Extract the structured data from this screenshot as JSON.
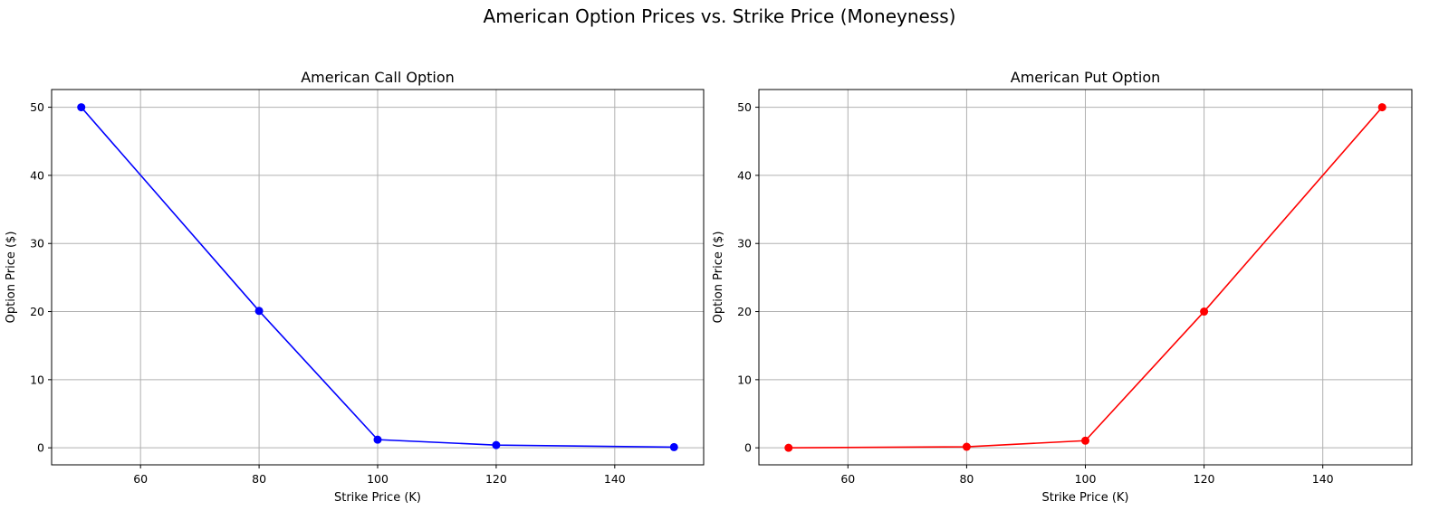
{
  "figure": {
    "suptitle": "American Option Prices vs. Strike Price (Moneyness)"
  },
  "chart_data": [
    {
      "type": "line",
      "title": "American Call Option",
      "xlabel": "Strike Price (K)",
      "ylabel": "Option Price ($)",
      "x": [
        50,
        80,
        100,
        120,
        150
      ],
      "series": [
        {
          "values": [
            50.0,
            20.1,
            1.2,
            0.4,
            0.1
          ],
          "color": "#0000ff",
          "marker": "circle"
        }
      ],
      "xlim": [
        45,
        155
      ],
      "ylim": [
        -2.5,
        52.6
      ],
      "xticks": [
        60,
        80,
        100,
        120,
        140
      ],
      "yticks": [
        0,
        10,
        20,
        30,
        40,
        50
      ],
      "grid": true
    },
    {
      "type": "line",
      "title": "American Put Option",
      "xlabel": "Strike Price (K)",
      "ylabel": "Option Price ($)",
      "x": [
        50,
        80,
        100,
        120,
        150
      ],
      "series": [
        {
          "values": [
            0.0,
            0.15,
            1.05,
            20.0,
            50.0
          ],
          "color": "#ff0000",
          "marker": "circle"
        }
      ],
      "xlim": [
        45,
        155
      ],
      "ylim": [
        -2.5,
        52.6
      ],
      "xticks": [
        60,
        80,
        100,
        120,
        140
      ],
      "yticks": [
        0,
        10,
        20,
        30,
        40,
        50
      ],
      "grid": true
    }
  ]
}
